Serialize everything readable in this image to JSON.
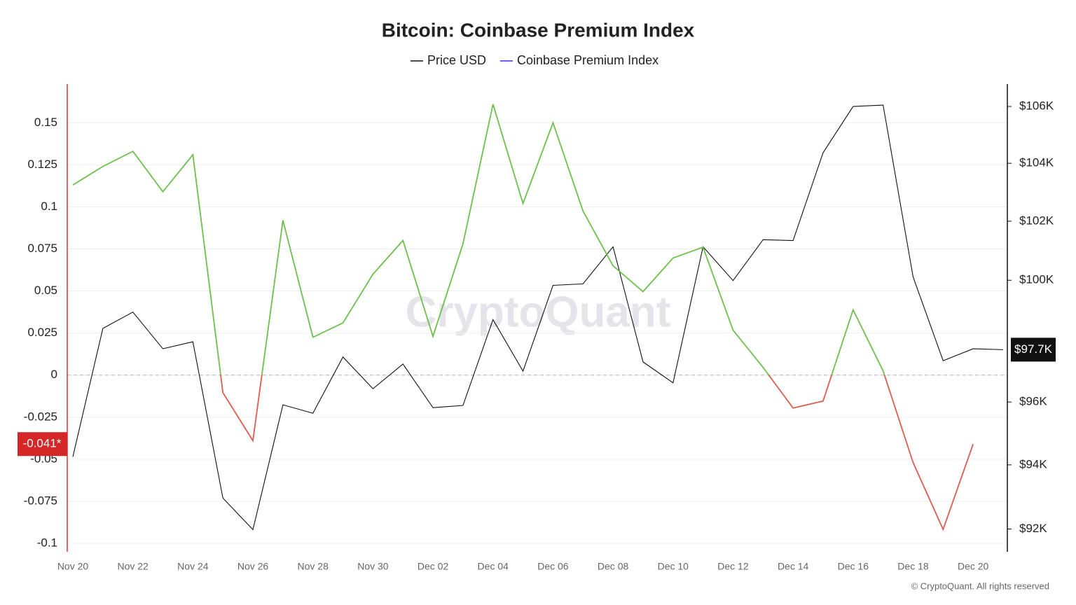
{
  "chart_data": {
    "type": "line",
    "title": "Bitcoin: Coinbase Premium Index",
    "watermark": "CryptoQuant",
    "footer": "© CryptoQuant. All rights reserved",
    "categories": [
      "Nov 20",
      null,
      "Nov 22",
      null,
      "Nov 24",
      null,
      "Nov 26",
      null,
      "Nov 28",
      null,
      "Nov 30",
      null,
      "Dec 02",
      null,
      "Dec 04",
      null,
      "Dec 06",
      null,
      "Dec 08",
      null,
      "Dec 10",
      null,
      "Dec 12",
      null,
      "Dec 14",
      null,
      "Dec 16",
      null,
      "Dec 18",
      null,
      "Dec 20",
      null
    ],
    "series": [
      {
        "name": "Price USD",
        "color": "#111111",
        "axis": "y2",
        "values": [
          94255,
          98400,
          98940,
          97730,
          97960,
          92960,
          91980,
          95910,
          95640,
          97460,
          96430,
          97230,
          95820,
          95890,
          98690,
          97000,
          99830,
          99880,
          101130,
          97300,
          96620,
          101130,
          99990,
          101370,
          101340,
          104370,
          106000,
          106050,
          100110,
          97340,
          97730,
          97700
        ],
        "value_labels": [
          null,
          null,
          null,
          null,
          null,
          null,
          null,
          null,
          null,
          null,
          null,
          null,
          null,
          null,
          null,
          null,
          null,
          null,
          null,
          null,
          null,
          null,
          null,
          null,
          null,
          null,
          null,
          null,
          null,
          null,
          null,
          "$97.7K"
        ]
      },
      {
        "name": "Coinbase Premium Index",
        "color": "#3b2fd6",
        "positive_color": "#6cc04a",
        "negative_color": "#e05a4f",
        "values": [
          0.113,
          0.124,
          0.133,
          0.109,
          0.131,
          -0.0104,
          -0.039,
          0.092,
          0.0225,
          0.031,
          0.06,
          0.08,
          0.023,
          0.078,
          0.161,
          0.102,
          0.15,
          0.0975,
          0.065,
          0.0496,
          0.0696,
          0.076,
          0.0267,
          0.0046,
          -0.0196,
          -0.0154,
          0.0388,
          0.0025,
          -0.052,
          -0.0917,
          -0.041,
          null
        ],
        "value_labels": [
          null,
          null,
          null,
          null,
          null,
          null,
          null,
          null,
          null,
          null,
          null,
          null,
          null,
          null,
          null,
          null,
          null,
          null,
          null,
          null,
          null,
          null,
          null,
          null,
          null,
          null,
          null,
          null,
          null,
          null,
          "-0.041*",
          null
        ]
      }
    ],
    "ylim": [
      -0.105,
      0.173
    ],
    "yticks": [
      -0.1,
      -0.075,
      -0.05,
      -0.025,
      0,
      0.025,
      0.05,
      0.075,
      0.1,
      0.125,
      0.15
    ],
    "y2lim": [
      91300,
      106800
    ],
    "y2_log": true,
    "y2ticks": [
      {
        "value": 92000,
        "label": "$92K"
      },
      {
        "value": 94000,
        "label": "$94K"
      },
      {
        "value": 96000,
        "label": "$96K"
      },
      {
        "value": 100000,
        "label": "$100K"
      },
      {
        "value": 102000,
        "label": "$102K"
      },
      {
        "value": 104000,
        "label": "$104K"
      },
      {
        "value": 106000,
        "label": "$106K"
      }
    ],
    "grid": true,
    "zero_line": true,
    "legend": "top"
  }
}
